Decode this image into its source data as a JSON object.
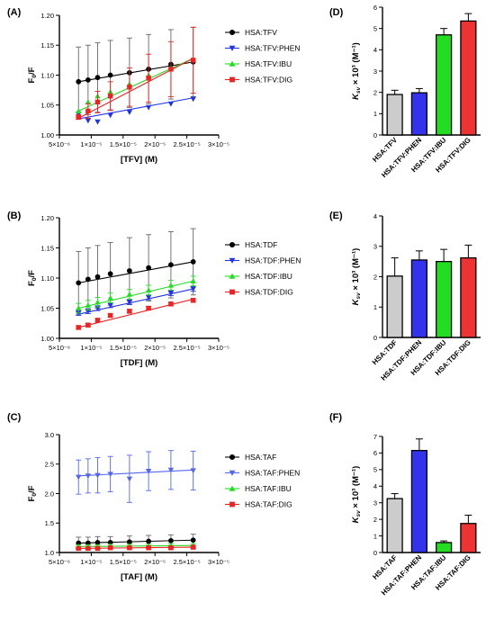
{
  "panels": {
    "A": {
      "letter": "(A)"
    },
    "B": {
      "letter": "(B)"
    },
    "C": {
      "letter": "(C)"
    },
    "D": {
      "letter": "(D)"
    },
    "E": {
      "letter": "(E)"
    },
    "F": {
      "letter": "(F)"
    }
  },
  "chart_data": [
    {
      "id": "A",
      "type": "scatter",
      "xlabel": "[TFV] (M)",
      "ylabel": "F0/F",
      "xlim": [
        5e-06,
        3e-05
      ],
      "ylim": [
        1.0,
        1.2
      ],
      "xticks": [
        "5×10⁻⁶",
        "1×10⁻⁵",
        "1.5×10⁻⁵",
        "2×10⁻⁵",
        "2.5×10⁻⁵",
        "3×10⁻⁵"
      ],
      "yticks": [
        "1.00",
        "1.05",
        "1.10",
        "1.15",
        "1.20"
      ],
      "ytick_values": [
        1.0,
        1.05,
        1.1,
        1.15,
        1.2
      ],
      "legend_position": "top-right",
      "series": [
        {
          "name": "HSA:TFV",
          "color": "#000000",
          "marker": "circle",
          "x": [
            8e-06,
            9.5e-06,
            1.1e-05,
            1.3e-05,
            1.6e-05,
            1.9e-05,
            2.25e-05,
            2.6e-05
          ],
          "y": [
            1.089,
            1.092,
            1.096,
            1.1,
            1.104,
            1.11,
            1.118,
            1.122
          ],
          "err": [
            0.058,
            0.058,
            0.058,
            0.058,
            0.058,
            0.058,
            0.058,
            0.058
          ],
          "fit": [
            1.089,
            1.122
          ]
        },
        {
          "name": "HSA:TFV:PHEN",
          "color": "#2233ee",
          "marker": "triangle-down",
          "x": [
            8e-06,
            9.5e-06,
            1.1e-05,
            1.3e-05,
            1.6e-05,
            1.9e-05,
            2.25e-05,
            2.6e-05
          ],
          "y": [
            1.035,
            1.024,
            1.022,
            1.033,
            1.038,
            1.046,
            1.052,
            1.06
          ],
          "err": [
            0,
            0,
            0,
            0,
            0,
            0,
            0,
            0
          ],
          "fit": [
            1.027,
            1.062
          ]
        },
        {
          "name": "HSA:TFV:IBU",
          "color": "#22dd22",
          "marker": "triangle-up",
          "x": [
            8e-06,
            9.5e-06,
            1.1e-05,
            1.3e-05,
            1.6e-05,
            1.9e-05,
            2.25e-05,
            2.6e-05
          ],
          "y": [
            1.04,
            1.055,
            1.065,
            1.072,
            1.085,
            1.1,
            1.112,
            1.125
          ],
          "err": [
            0,
            0,
            0,
            0,
            0,
            0,
            0,
            0
          ],
          "fit": [
            1.04,
            1.128
          ]
        },
        {
          "name": "HSA:TFV:DIG",
          "color": "#ee2222",
          "marker": "square",
          "x": [
            8e-06,
            9.5e-06,
            1.1e-05,
            1.3e-05,
            1.6e-05,
            1.9e-05,
            2.25e-05,
            2.6e-05
          ],
          "y": [
            1.03,
            1.04,
            1.055,
            1.065,
            1.08,
            1.095,
            1.11,
            1.125
          ],
          "err": [
            0.004,
            0.012,
            0.018,
            0.024,
            0.032,
            0.04,
            0.046,
            0.055
          ],
          "fit": [
            1.028,
            1.128
          ]
        }
      ]
    },
    {
      "id": "B",
      "type": "scatter",
      "xlabel": "[TDF] (M)",
      "ylabel": "F0/F",
      "xlim": [
        5e-06,
        3e-05
      ],
      "ylim": [
        1.0,
        1.2
      ],
      "xticks": [
        "5×10⁻⁶",
        "1×10⁻⁵",
        "1.5×10⁻⁵",
        "2×10⁻⁵",
        "2.5×10⁻⁵",
        "3×10⁻⁵"
      ],
      "yticks": [
        "1.00",
        "1.05",
        "1.10",
        "1.15",
        "1.20"
      ],
      "ytick_values": [
        1.0,
        1.05,
        1.1,
        1.15,
        1.2
      ],
      "legend_position": "top-right",
      "series": [
        {
          "name": "HSA:TDF",
          "color": "#000000",
          "marker": "circle",
          "x": [
            8e-06,
            9.5e-06,
            1.1e-05,
            1.3e-05,
            1.6e-05,
            1.9e-05,
            2.25e-05,
            2.6e-05
          ],
          "y": [
            1.092,
            1.098,
            1.102,
            1.107,
            1.112,
            1.117,
            1.122,
            1.127
          ],
          "err": [
            0.052,
            0.052,
            0.052,
            0.052,
            0.055,
            0.055,
            0.055,
            0.055
          ],
          "fit": [
            1.092,
            1.127
          ]
        },
        {
          "name": "HSA:TDF:PHEN",
          "color": "#2233ee",
          "marker": "triangle-down",
          "x": [
            8e-06,
            9.5e-06,
            1.1e-05,
            1.3e-05,
            1.6e-05,
            1.9e-05,
            2.25e-05,
            2.6e-05
          ],
          "y": [
            1.042,
            1.045,
            1.05,
            1.055,
            1.06,
            1.068,
            1.075,
            1.082
          ],
          "err": [
            0.004,
            0.004,
            0.004,
            0.004,
            0.004,
            0.004,
            0.004,
            0.004
          ],
          "fit": [
            1.04,
            1.082
          ]
        },
        {
          "name": "HSA:TDF:IBU",
          "color": "#22dd22",
          "marker": "triangle-up",
          "x": [
            8e-06,
            9.5e-06,
            1.1e-05,
            1.3e-05,
            1.6e-05,
            1.9e-05,
            2.25e-05,
            2.6e-05
          ],
          "y": [
            1.05,
            1.055,
            1.06,
            1.067,
            1.073,
            1.08,
            1.088,
            1.095
          ],
          "err": [
            0.008,
            0.008,
            0.008,
            0.008,
            0.008,
            0.008,
            0.008,
            0.008
          ],
          "fit": [
            1.05,
            1.095
          ]
        },
        {
          "name": "HSA:TDF:DIG",
          "color": "#ee2222",
          "marker": "square",
          "x": [
            8e-06,
            9.5e-06,
            1.1e-05,
            1.3e-05,
            1.6e-05,
            1.9e-05,
            2.25e-05,
            2.6e-05
          ],
          "y": [
            1.018,
            1.022,
            1.03,
            1.038,
            1.045,
            1.05,
            1.057,
            1.063
          ],
          "err": [
            0.003,
            0.003,
            0.003,
            0.003,
            0.003,
            0.003,
            0.003,
            0.003
          ],
          "fit": [
            1.018,
            1.065
          ]
        }
      ]
    },
    {
      "id": "C",
      "type": "scatter",
      "xlabel": "[TAF] (M)",
      "ylabel": "F0/F",
      "xlim": [
        5e-06,
        3e-05
      ],
      "ylim": [
        1.0,
        3.0
      ],
      "xticks": [
        "5×10⁻⁶",
        "1×10⁻⁵",
        "1.5×10⁻⁵",
        "2×10⁻⁵",
        "2.5×10⁻⁵",
        "3×10⁻⁵"
      ],
      "yticks": [
        "1.0",
        "1.5",
        "2.0",
        "2.5",
        "3.0"
      ],
      "ytick_values": [
        1.0,
        1.5,
        2.0,
        2.5,
        3.0
      ],
      "legend_position": "right",
      "series": [
        {
          "name": "HSA:TAF",
          "color": "#000000",
          "marker": "circle",
          "x": [
            8e-06,
            9.5e-06,
            1.1e-05,
            1.3e-05,
            1.6e-05,
            1.9e-05,
            2.25e-05,
            2.6e-05
          ],
          "y": [
            1.16,
            1.16,
            1.17,
            1.17,
            1.18,
            1.19,
            1.2,
            1.21
          ],
          "err": [
            0.1,
            0.1,
            0.1,
            0.1,
            0.1,
            0.1,
            0.1,
            0.1
          ],
          "fit": [
            1.16,
            1.21
          ]
        },
        {
          "name": "HSA:TAF:PHEN",
          "color": "#5566ee",
          "marker": "triangle-down",
          "x": [
            8e-06,
            9.5e-06,
            1.1e-05,
            1.3e-05,
            1.6e-05,
            1.9e-05,
            2.25e-05,
            2.6e-05
          ],
          "y": [
            2.28,
            2.3,
            2.31,
            2.33,
            2.25,
            2.38,
            2.4,
            2.39
          ],
          "err": [
            0.29,
            0.29,
            0.3,
            0.3,
            0.4,
            0.33,
            0.33,
            0.33
          ],
          "fit": [
            2.3,
            2.4
          ]
        },
        {
          "name": "HSA:TAF:IBU",
          "color": "#22dd22",
          "marker": "triangle-up",
          "x": [
            8e-06,
            9.5e-06,
            1.1e-05,
            1.3e-05,
            1.6e-05,
            1.9e-05,
            2.25e-05,
            2.6e-05
          ],
          "y": [
            1.1,
            1.1,
            1.1,
            1.11,
            1.11,
            1.11,
            1.12,
            1.12
          ],
          "err": [
            0.03,
            0.03,
            0.03,
            0.03,
            0.03,
            0.03,
            0.03,
            0.03
          ],
          "fit": [
            1.1,
            1.12
          ]
        },
        {
          "name": "HSA:TAF:DIG",
          "color": "#ee2222",
          "marker": "square",
          "x": [
            8e-06,
            9.5e-06,
            1.1e-05,
            1.3e-05,
            1.6e-05,
            1.9e-05,
            2.25e-05,
            2.6e-05
          ],
          "y": [
            1.07,
            1.07,
            1.07,
            1.08,
            1.08,
            1.08,
            1.08,
            1.09
          ],
          "err": [
            0.02,
            0.02,
            0.02,
            0.02,
            0.02,
            0.02,
            0.02,
            0.02
          ],
          "fit": [
            1.07,
            1.09
          ]
        }
      ]
    },
    {
      "id": "D",
      "type": "bar",
      "ylabel": "Ksv × 10³ (M⁻¹)",
      "ylim": [
        0,
        6
      ],
      "yticks": [
        "0",
        "1",
        "2",
        "3",
        "4",
        "5",
        "6"
      ],
      "categories": [
        "HSA:TFV",
        "HSA:TFV:PHEN",
        "HSA:TFV:IBU",
        "HSA:TFV:DIG"
      ],
      "values": [
        1.9,
        1.98,
        4.7,
        5.35
      ],
      "errors": [
        0.2,
        0.2,
        0.3,
        0.35
      ],
      "colors": [
        "#cccccc",
        "#3333ee",
        "#22dd22",
        "#ee3333"
      ]
    },
    {
      "id": "E",
      "type": "bar",
      "ylabel": "Ksv × 10³ (M⁻¹)",
      "ylim": [
        0,
        4
      ],
      "yticks": [
        "0",
        "1",
        "2",
        "3",
        "4"
      ],
      "categories": [
        "HSA:TDF",
        "HSA:TDF:PHEN",
        "HSA:TDF:IBU",
        "HSA:TDF:DIG"
      ],
      "values": [
        2.02,
        2.55,
        2.5,
        2.62
      ],
      "errors": [
        0.6,
        0.3,
        0.4,
        0.42
      ],
      "colors": [
        "#cccccc",
        "#3333ee",
        "#22dd22",
        "#ee3333"
      ]
    },
    {
      "id": "F",
      "type": "bar",
      "ylabel": "Ksv × 10³ (M⁻¹)",
      "ylim": [
        0,
        7
      ],
      "yticks": [
        "0",
        "1",
        "2",
        "3",
        "4",
        "5",
        "6",
        "7"
      ],
      "categories": [
        "HSA:TAF",
        "HSA:TAF:PHEN",
        "HSA:TAF:IBU",
        "HSA:TAF:DIG"
      ],
      "values": [
        3.25,
        6.15,
        0.6,
        1.75
      ],
      "errors": [
        0.3,
        0.7,
        0.1,
        0.5
      ],
      "colors": [
        "#cccccc",
        "#3333ee",
        "#22dd22",
        "#ee3333"
      ]
    }
  ]
}
